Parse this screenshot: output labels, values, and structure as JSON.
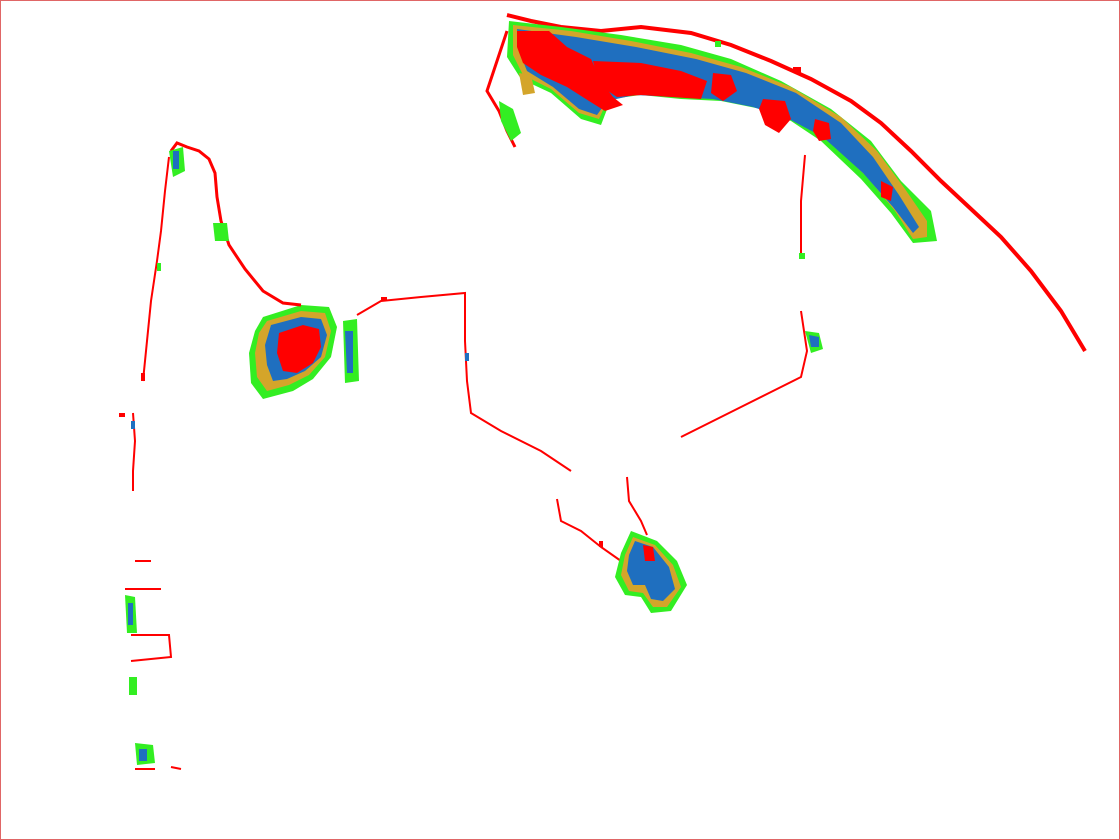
{
  "map": {
    "background": "#ffffff",
    "border_color": "#e06666",
    "legend_colors": {
      "red": "#ff0000",
      "blue": "#1f6fbf",
      "tan": "#d4a52a",
      "green": "#33ee22",
      "outline": "#ff0000"
    }
  }
}
